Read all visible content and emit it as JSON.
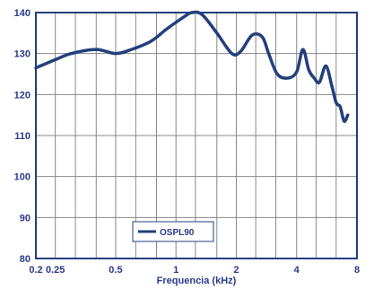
{
  "chart_data": {
    "type": "line",
    "title": "",
    "xlabel": "Frequencia (kHz)",
    "ylabel": "",
    "x_scale": "log",
    "xlim": [
      0.2,
      8
    ],
    "ylim": [
      80,
      140
    ],
    "x_ticks": [
      {
        "value": 0.2,
        "label": "0.2"
      },
      {
        "value": 0.25,
        "label": "0.25"
      },
      {
        "value": 0.5,
        "label": "0.5"
      },
      {
        "value": 1,
        "label": "1"
      },
      {
        "value": 2,
        "label": "2"
      },
      {
        "value": 4,
        "label": "4"
      },
      {
        "value": 8,
        "label": "8"
      }
    ],
    "x_grid": [
      0.2,
      0.25,
      0.315,
      0.4,
      0.5,
      0.63,
      0.8,
      1,
      1.25,
      1.6,
      2,
      2.5,
      3.15,
      4,
      5,
      6.3,
      8
    ],
    "y_ticks": [
      80,
      90,
      100,
      110,
      120,
      130,
      140
    ],
    "grid": true,
    "legend_position": "bottom-center",
    "colors": {
      "line": "#233f7c",
      "frame": "#233f7c",
      "grid": "#888888",
      "text": "#2a3a8c"
    },
    "series": [
      {
        "name": "OSPL90",
        "x": [
          0.2,
          0.25,
          0.3,
          0.4,
          0.5,
          0.6,
          0.75,
          0.9,
          1.1,
          1.2,
          1.35,
          1.6,
          1.9,
          2.1,
          2.4,
          2.7,
          2.9,
          3.2,
          3.6,
          4.0,
          4.3,
          4.6,
          4.9,
          5.2,
          5.6,
          6.0,
          6.3,
          6.6,
          6.9,
          7.2
        ],
        "values": [
          126.5,
          128.5,
          130,
          131,
          130,
          131,
          133,
          136,
          139,
          140,
          139.5,
          135,
          130,
          130.5,
          134.5,
          134,
          130,
          125,
          124,
          125.5,
          131,
          126,
          124,
          123,
          127,
          122,
          118,
          117,
          113.5,
          115
        ]
      }
    ]
  }
}
